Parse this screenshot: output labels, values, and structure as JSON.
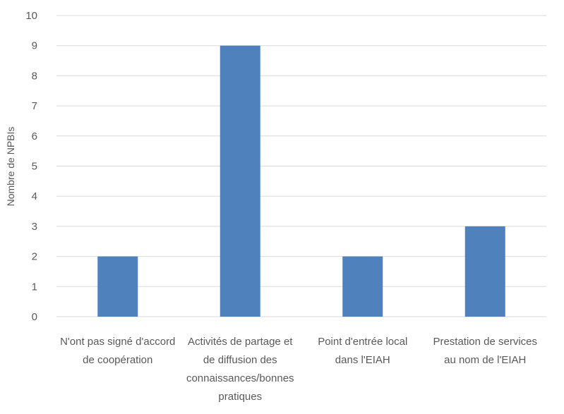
{
  "chart_data": {
    "type": "bar",
    "title": "",
    "xlabel": "",
    "ylabel": "Nombre de NPBIs",
    "ylim": [
      0,
      10
    ],
    "yticks": [
      0,
      1,
      2,
      3,
      4,
      5,
      6,
      7,
      8,
      9,
      10
    ],
    "grid": true,
    "bar_color": "#4f81bd",
    "categories": [
      [
        "N'ont pas signé d'accord",
        "de coopération"
      ],
      [
        "Activités de partage et",
        "de diffusion des",
        "connaissances/bonnes",
        "pratiques"
      ],
      [
        "Point d'entrée local",
        "dans l'EIAH"
      ],
      [
        "Prestation de services",
        "au nom de l'EIAH"
      ]
    ],
    "values": [
      2,
      9,
      2,
      3
    ]
  }
}
